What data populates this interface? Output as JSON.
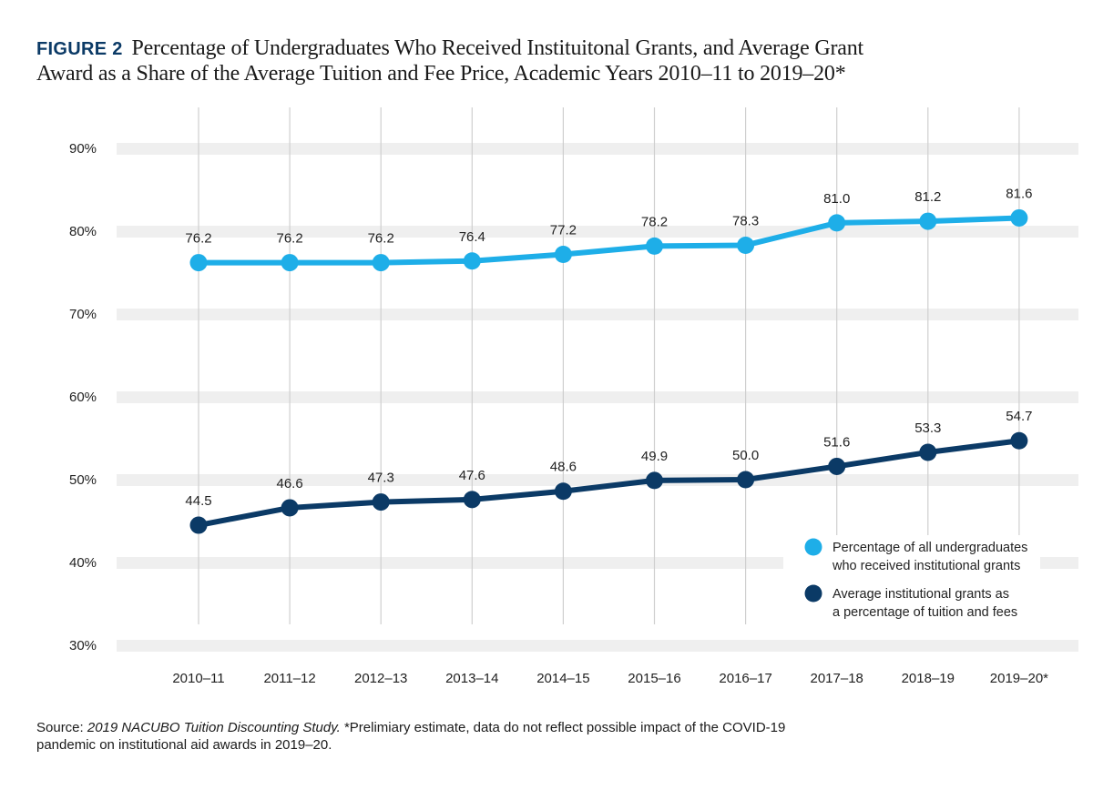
{
  "figure_label": "FIGURE 2",
  "title_line1": "Percentage of Undergraduates Who Received Instituitonal Grants, and Average Grant",
  "title_line2": "Award as a Share of the Average Tuition and Fee Price, Academic Years 2010–11 to 2019–20*",
  "source": {
    "prefix": "Source: ",
    "publication": "2019 NACUBO Tuition Discounting Study.",
    "note_line1": " *Prelimiary estimate, data do not reflect possible impact of the COVID-19",
    "note_line2": "pandemic on institutional aid awards in 2019–20."
  },
  "chart_data": {
    "type": "line",
    "categories": [
      "2010–11",
      "2011–12",
      "2012–13",
      "2013–14",
      "2014–15",
      "2015–16",
      "2016–17",
      "2017–18",
      "2018–19",
      "2019–20*"
    ],
    "y_ticks": [
      "30%",
      "40%",
      "50%",
      "60%",
      "70%",
      "80%",
      "90%"
    ],
    "ylim": [
      30,
      90
    ],
    "legend_position": "lower-right",
    "series": [
      {
        "name": "Percentage of all undergraduates who received institutional grants",
        "legend_line1": "Percentage of all undergraduates",
        "legend_line2": "who received institutional grants",
        "color": "#1eaee8",
        "values": [
          76.2,
          76.2,
          76.2,
          76.4,
          77.2,
          78.2,
          78.3,
          81.0,
          81.2,
          81.6
        ],
        "labels": [
          "76.2",
          "76.2",
          "76.2",
          "76.4",
          "77.2",
          "78.2",
          "78.3",
          "81.0",
          "81.2",
          "81.6"
        ]
      },
      {
        "name": "Average institutional grants as a percentage of tuition and fees",
        "legend_line1": "Average institutional grants as",
        "legend_line2": "a percentage of tuition and fees",
        "color": "#0b3a66",
        "values": [
          44.5,
          46.6,
          47.3,
          47.6,
          48.6,
          49.9,
          50.0,
          51.6,
          53.3,
          54.7
        ],
        "labels": [
          "44.5",
          "46.6",
          "47.3",
          "47.6",
          "48.6",
          "49.9",
          "50.0",
          "51.6",
          "53.3",
          "54.7"
        ]
      }
    ]
  }
}
